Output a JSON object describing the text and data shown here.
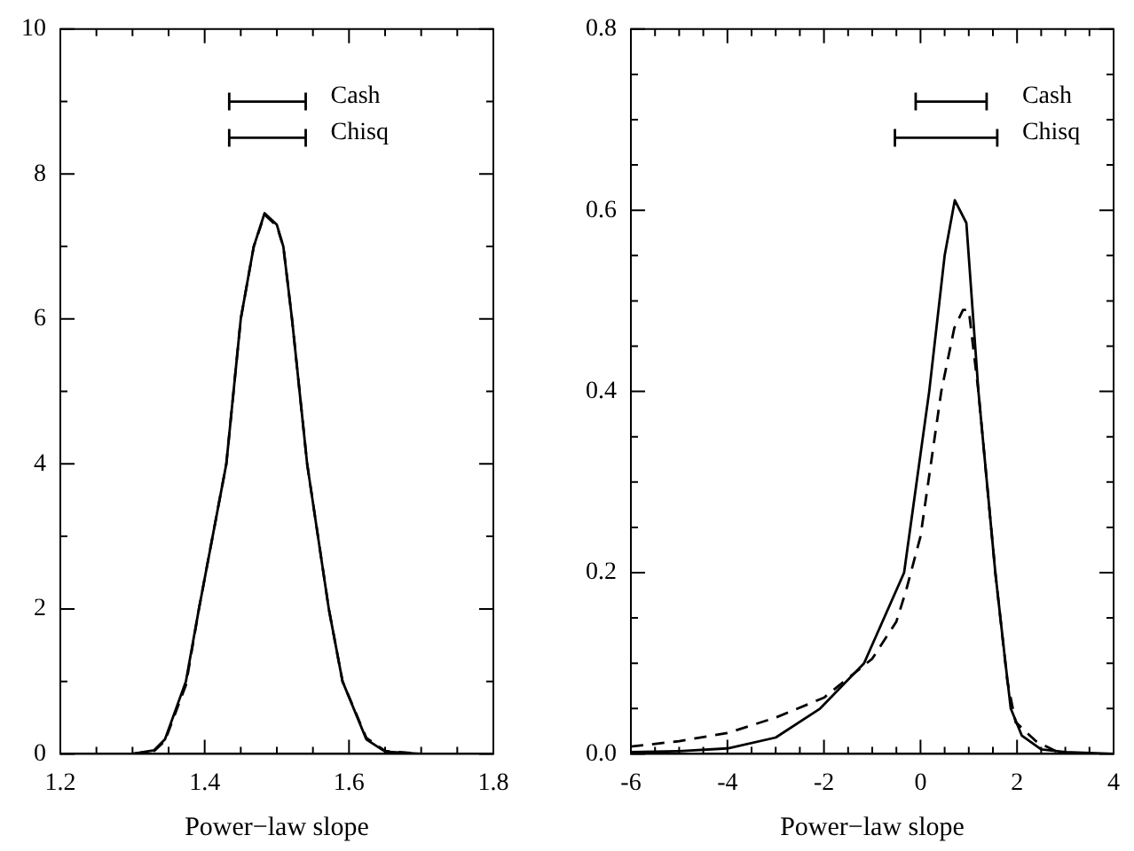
{
  "chart_data": [
    {
      "type": "line",
      "xlabel": "Power−law slope",
      "xlim": [
        1.2,
        1.8
      ],
      "ylim": [
        0,
        10
      ],
      "xticks": [
        1.2,
        {
          "value": 1.25,
          "label": null
        },
        {
          "value": 1.3,
          "label": null
        },
        {
          "value": 1.35,
          "label": null
        },
        1.4,
        {
          "value": 1.45,
          "label": null
        },
        {
          "value": 1.5,
          "label": null
        },
        {
          "value": 1.55,
          "label": null
        },
        1.6,
        {
          "value": 1.65,
          "label": null
        },
        {
          "value": 1.7,
          "label": null
        },
        {
          "value": 1.75,
          "label": null
        },
        1.8
      ],
      "yticks": [
        0,
        {
          "value": 1,
          "label": null
        },
        2,
        {
          "value": 3,
          "label": null
        },
        4,
        {
          "value": 5,
          "label": null
        },
        6,
        {
          "value": 7,
          "label": null
        },
        8,
        {
          "value": 9,
          "label": null
        },
        10
      ],
      "grid": false,
      "legend": "top right",
      "series": [
        {
          "color": "#000000",
          "line_style": "solid",
          "marker": "none",
          "x": [
            1.3,
            1.33,
            1.345,
            1.374,
            1.392,
            1.43,
            1.45,
            1.468,
            1.483,
            1.5,
            1.509,
            1.521,
            1.542,
            1.572,
            1.591,
            1.624,
            1.65,
            1.7
          ],
          "values": [
            0,
            0.05,
            0.2,
            1,
            2,
            4,
            6,
            7,
            7.46,
            7.3,
            7,
            6,
            4,
            2,
            1,
            0.2,
            0.03,
            0
          ]
        },
        {
          "color": "#000000",
          "line_style": "dashed",
          "marker": "none",
          "x": [
            1.3,
            1.33,
            1.345,
            1.374,
            1.392,
            1.43,
            1.45,
            1.468,
            1.483,
            1.5,
            1.509,
            1.521,
            1.542,
            1.572,
            1.591,
            1.624,
            1.65,
            1.7
          ],
          "values": [
            0,
            0.04,
            0.18,
            0.95,
            2,
            4,
            6,
            7,
            7.44,
            7.28,
            7,
            6,
            4,
            2,
            1,
            0.22,
            0.04,
            0
          ]
        },
        {
          "name": "Cash",
          "color": "#000000",
          "line_style": "solid",
          "x": [
            1.434,
            1.54
          ],
          "values": [
            9,
            9
          ]
        },
        {
          "name": "Chisq",
          "color": "#000000",
          "line_style": "solid",
          "x": [
            1.434,
            1.54
          ],
          "values": [
            8.5,
            8.5
          ]
        }
      ]
    },
    {
      "type": "line",
      "xlabel": "Power−law slope",
      "xlim": [
        -6,
        4
      ],
      "ylim": [
        0,
        0.8
      ],
      "xticks": [
        -6,
        {
          "value": -5.5,
          "label": null
        },
        {
          "value": -5,
          "label": null
        },
        {
          "value": -4.5,
          "label": null
        },
        -4,
        {
          "value": -3.5,
          "label": null
        },
        {
          "value": -3,
          "label": null
        },
        {
          "value": -2.5,
          "label": null
        },
        -2,
        {
          "value": -1.5,
          "label": null
        },
        {
          "value": -1,
          "label": null
        },
        {
          "value": -0.5,
          "label": null
        },
        0,
        {
          "value": 0.5,
          "label": null
        },
        {
          "value": 1,
          "label": null
        },
        {
          "value": 1.5,
          "label": null
        },
        2,
        {
          "value": 2.5,
          "label": null
        },
        {
          "value": 3,
          "label": null
        },
        {
          "value": 3.5,
          "label": null
        },
        4
      ],
      "yticks": [
        {
          "value": 0,
          "label": "0.0"
        },
        {
          "value": 0.05,
          "label": null
        },
        0.2,
        {
          "value": 0.25,
          "label": null
        },
        0.4,
        {
          "value": 0.45,
          "label": null
        },
        0.6,
        {
          "value": 0.65,
          "label": null
        },
        0.8,
        {
          "value": 0.1,
          "label": null
        },
        {
          "value": 0.15,
          "label": null
        },
        {
          "value": 0.3,
          "label": null
        },
        {
          "value": 0.35,
          "label": null
        },
        {
          "value": 0.5,
          "label": null
        },
        {
          "value": 0.55,
          "label": null
        },
        {
          "value": 0.7,
          "label": null
        },
        {
          "value": 0.75,
          "label": null
        }
      ],
      "grid": false,
      "legend": "top right",
      "series": [
        {
          "color": "#000000",
          "line_style": "solid",
          "marker": "none",
          "x": [
            -6,
            -5,
            -4,
            -3,
            -2.08,
            -1.17,
            -0.34,
            0.18,
            0.5,
            0.71,
            0.95,
            1.2,
            1.55,
            1.76,
            1.87,
            2.1,
            2.5,
            3,
            4
          ],
          "values": [
            0.002,
            0.003,
            0.006,
            0.018,
            0.05,
            0.1,
            0.2,
            0.4,
            0.55,
            0.611,
            0.586,
            0.4,
            0.2,
            0.1,
            0.05,
            0.02,
            0.005,
            0.002,
            0
          ]
        },
        {
          "color": "#000000",
          "line_style": "dashed",
          "marker": "none",
          "x": [
            -6,
            -5,
            -4,
            -3,
            -2,
            -1,
            -0.5,
            -0.3,
            0,
            0.43,
            0.7,
            0.88,
            1,
            1.2,
            1.55,
            1.8,
            1.97,
            2.39,
            2.8,
            3.2
          ],
          "values": [
            0.008,
            0.014,
            0.023,
            0.04,
            0.062,
            0.105,
            0.146,
            0.18,
            0.24,
            0.4,
            0.47,
            0.49,
            0.49,
            0.4,
            0.2,
            0.08,
            0.035,
            0.014,
            0.003,
            0
          ]
        },
        {
          "name": "Cash",
          "color": "#000000",
          "line_style": "solid",
          "x": [
            -0.1,
            1.37
          ],
          "values": [
            0.72,
            0.72
          ]
        },
        {
          "name": "Chisq",
          "color": "#000000",
          "line_style": "solid",
          "x": [
            -0.53,
            1.59
          ],
          "values": [
            0.68,
            0.68
          ]
        }
      ]
    }
  ]
}
